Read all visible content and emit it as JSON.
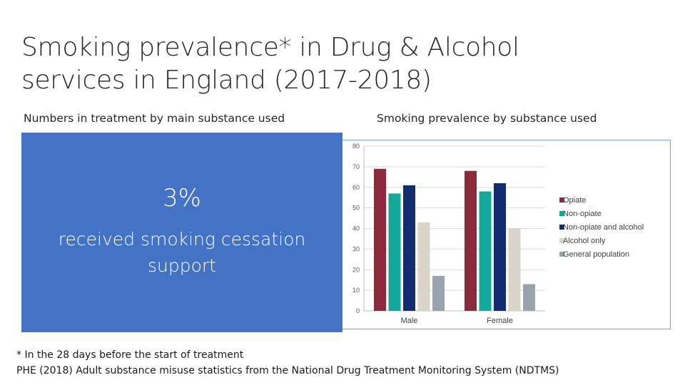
{
  "slide": {
    "title_line1": "Smoking prevalence* in Drug & Alcohol",
    "title_line2": "services in England (2017-2018)",
    "left_subtitle": "Numbers in treatment by main substance used",
    "right_subtitle": "Smoking prevalence by substance used",
    "callout": {
      "value": "3%",
      "message_line1": "received smoking cessation",
      "message_line2": "support",
      "color": "#4472c4"
    },
    "footnote": "* In the 28 days before the start of treatment",
    "source": "PHE (2018) Adult substance misuse statistics from the National Drug Treatment Monitoring System (NDTMS)"
  },
  "chart_data": {
    "type": "bar",
    "categories": [
      "Male",
      "Female"
    ],
    "series": [
      {
        "name": "Opiate",
        "color": "#8b2a3a",
        "values": [
          69,
          68
        ]
      },
      {
        "name": "Non-opiate",
        "color": "#12a99a",
        "values": [
          57,
          58
        ]
      },
      {
        "name": "Non-opiate and alcohol",
        "color": "#132c6e",
        "values": [
          61,
          62
        ]
      },
      {
        "name": "Alcohol only",
        "color": "#d8d4c8",
        "values": [
          43,
          40
        ]
      },
      {
        "name": "General population",
        "color": "#9aa4ae",
        "values": [
          17,
          13
        ]
      }
    ],
    "ylim": [
      0,
      80
    ],
    "yticks": [
      0,
      10,
      20,
      30,
      40,
      50,
      60,
      70,
      80
    ],
    "grid": true,
    "legend": "right",
    "xlabel": "",
    "ylabel": ""
  }
}
